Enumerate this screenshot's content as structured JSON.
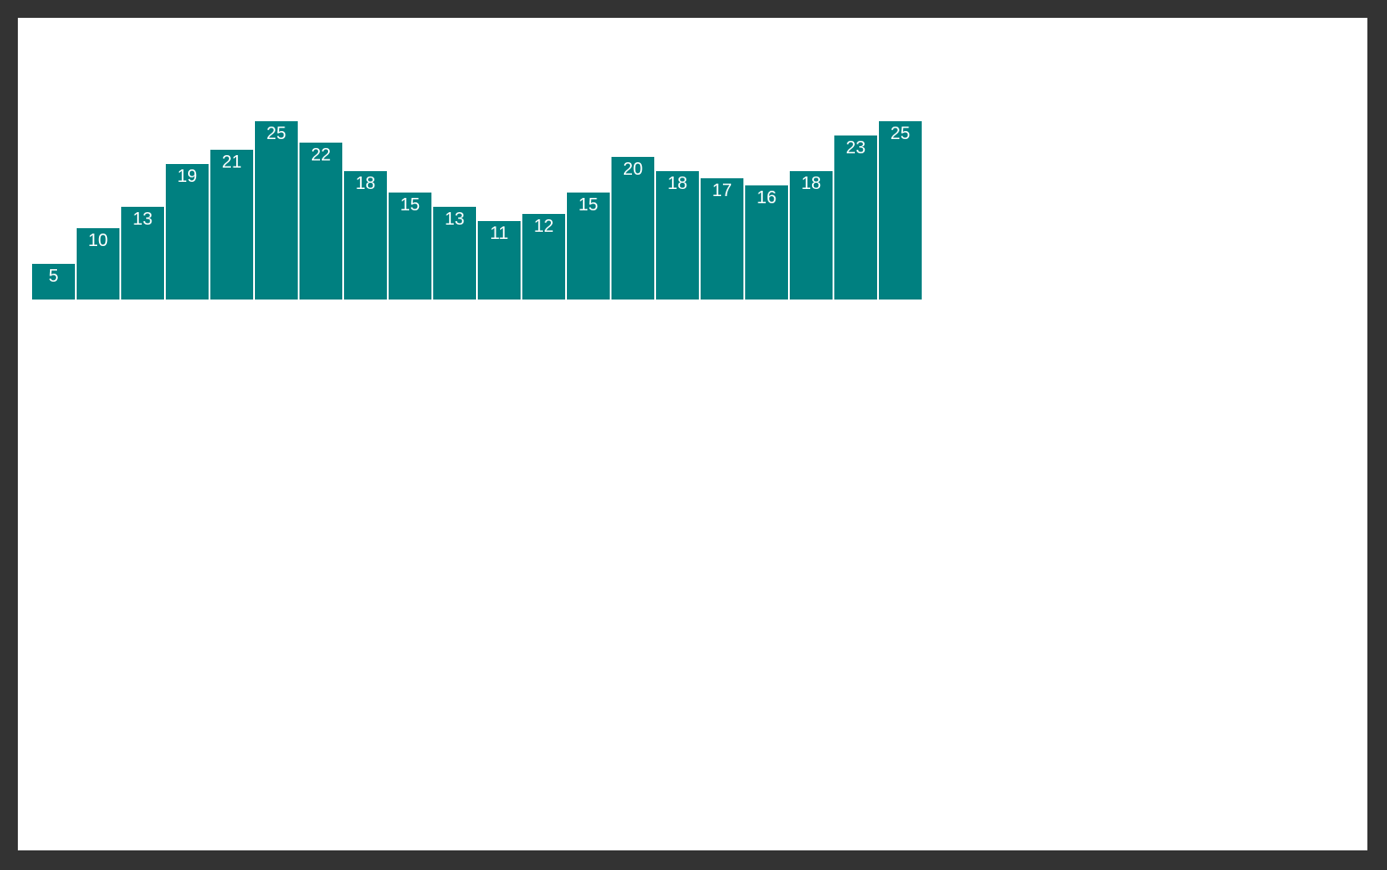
{
  "chart_data": {
    "type": "bar",
    "values": [
      5,
      10,
      13,
      19,
      21,
      25,
      22,
      18,
      15,
      13,
      11,
      12,
      15,
      20,
      18,
      17,
      16,
      18,
      23,
      25
    ],
    "data_labels": [
      "5",
      "10",
      "13",
      "19",
      "21",
      "25",
      "22",
      "18",
      "15",
      "13",
      "11",
      "12",
      "15",
      "20",
      "18",
      "17",
      "16",
      "18",
      "23",
      "25"
    ],
    "bar_color": "#008080",
    "label_color": "#ffffff",
    "frame_color": "#333333",
    "background_color": "#ffffff",
    "grid": false,
    "axes": false
  }
}
